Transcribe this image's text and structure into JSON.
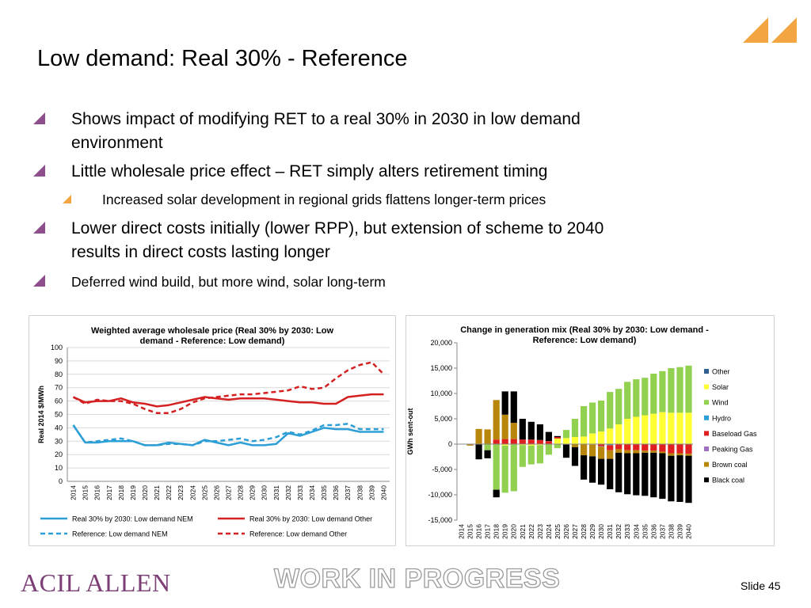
{
  "slide": {
    "title": "Low demand: Real 30% - Reference",
    "bullets": [
      {
        "level": 1,
        "text": "Shows impact of modifying RET to a real 30% in 2030 in low demand",
        "text2": "environment"
      },
      {
        "level": 1,
        "text": "Little wholesale price effect – RET simply alters retirement timing"
      },
      {
        "level": 2,
        "text": "Increased solar development in regional grids flattens longer-term prices"
      },
      {
        "level": 1,
        "text": "Lower direct costs initially (lower RPP), but extension of scheme to 2040",
        "text2": "results in direct costs lasting longer"
      },
      {
        "level": 1,
        "text": "Deferred wind build, but more wind, solar long-term",
        "small": true
      }
    ],
    "footer": {
      "logo": "ACIL ALLEN",
      "watermark": "WORK IN PROGRESS",
      "slide_number": "Slide 45"
    },
    "colors": {
      "accent_purple": "#8e4e8c",
      "accent_orange": "#f2a541",
      "brand": "#7b3f75"
    }
  },
  "chart_data": [
    {
      "type": "line",
      "title": "Weighted average wholesale price (Real 30% by 2030: Low demand - Reference: Low demand)",
      "title_lines": [
        "Weighted average wholesale price (Real 30% by 2030: Low",
        "demand - Reference: Low demand)"
      ],
      "ylabel": "Real 2014 $/MWh",
      "ylim": [
        0,
        100
      ],
      "yticks": [
        0,
        10,
        20,
        30,
        40,
        50,
        60,
        70,
        80,
        90,
        100
      ],
      "x": [
        "2014",
        "2015",
        "2016",
        "2017",
        "2018",
        "2019",
        "2020",
        "2021",
        "2022",
        "2023",
        "2024",
        "2025",
        "2026",
        "2027",
        "2028",
        "2029",
        "2030",
        "2031",
        "2032",
        "2033",
        "2034",
        "2035",
        "2036",
        "2037",
        "2038",
        "2039",
        "2040"
      ],
      "grid": true,
      "legend_position": "bottom",
      "series": [
        {
          "name": "Real 30% by 2030: Low demand NEM",
          "color": "#2e9fd6",
          "dash": false,
          "values": [
            42,
            29,
            29,
            30,
            30,
            30,
            27,
            27,
            29,
            28,
            27,
            31,
            29,
            27,
            29,
            27,
            27,
            28,
            36,
            34,
            37,
            40,
            39,
            39,
            37,
            37,
            37
          ]
        },
        {
          "name": "Real 30% by 2030: Low demand Other",
          "color": "#d42020",
          "dash": false,
          "values": [
            63,
            59,
            60,
            60,
            62,
            59,
            58,
            56,
            57,
            59,
            61,
            63,
            62,
            61,
            62,
            62,
            62,
            61,
            60,
            59,
            59,
            58,
            58,
            63,
            64,
            65,
            65
          ]
        },
        {
          "name": "Reference: Low demand NEM",
          "color": "#2e9fd6",
          "dash": true,
          "values": [
            42,
            29,
            30,
            31,
            32,
            30,
            27,
            27,
            28,
            28,
            27,
            30,
            30,
            31,
            32,
            30,
            31,
            33,
            37,
            35,
            38,
            42,
            42,
            43,
            39,
            39,
            39
          ]
        },
        {
          "name": "Reference: Low demand Other",
          "color": "#d42020",
          "dash": true,
          "values": [
            63,
            58,
            61,
            60,
            60,
            58,
            54,
            51,
            51,
            54,
            59,
            62,
            63,
            64,
            65,
            65,
            66,
            67,
            68,
            71,
            69,
            70,
            77,
            83,
            87,
            89,
            80
          ]
        }
      ]
    },
    {
      "type": "bar",
      "stacked": true,
      "title": "Change in generation mix (Real 30% by 2030: Low demand - Reference: Low demand)",
      "title_lines": [
        "Change in generation mix (Real 30% by 2030: Low demand -",
        "Reference: Low demand)"
      ],
      "ylabel": "GWh sent-out",
      "ylim": [
        -15000,
        20000
      ],
      "yticks": [
        -15000,
        -10000,
        -5000,
        0,
        5000,
        10000,
        15000,
        20000
      ],
      "ytick_labels": [
        "-15,000",
        "-10,000",
        "-5,000",
        "0",
        "5,000",
        "10,000",
        "15,000",
        "20,000"
      ],
      "categories": [
        "2014",
        "2015",
        "2016",
        "2017",
        "2018",
        "2019",
        "2020",
        "2021",
        "2022",
        "2023",
        "2024",
        "2025",
        "2026",
        "2027",
        "2028",
        "2029",
        "2030",
        "2031",
        "2032",
        "2033",
        "2034",
        "2035",
        "2036",
        "2037",
        "2038",
        "2039",
        "2040"
      ],
      "grid": false,
      "legend_position": "right",
      "series": [
        {
          "name": "Other",
          "color": "#2f5f8f",
          "values": [
            0,
            0,
            0,
            0,
            0,
            0,
            0,
            0,
            0,
            0,
            0,
            0,
            0,
            0,
            0,
            0,
            0,
            0,
            0,
            0,
            0,
            0,
            0,
            0,
            0,
            0,
            0
          ]
        },
        {
          "name": "Solar",
          "color": "#ffff33",
          "values": [
            0,
            0,
            0,
            0,
            0,
            -300,
            0,
            -200,
            -300,
            -200,
            0,
            1100,
            1200,
            1400,
            1500,
            2100,
            2500,
            3100,
            3900,
            5000,
            5400,
            5700,
            6000,
            6300,
            6200,
            6200,
            6200
          ]
        },
        {
          "name": "Wind",
          "color": "#92d050",
          "values": [
            0,
            0,
            0,
            -1200,
            -9000,
            -9300,
            -9300,
            -4300,
            -3700,
            -3600,
            -2100,
            -800,
            1600,
            3600,
            6000,
            6100,
            6100,
            7200,
            7000,
            7300,
            7400,
            7400,
            7900,
            8100,
            8800,
            9000,
            9300
          ]
        },
        {
          "name": "Hydro",
          "color": "#2e9fd6",
          "values": [
            0,
            0,
            0,
            0,
            0,
            0,
            0,
            0,
            0,
            0,
            0,
            0,
            0,
            0,
            0,
            0,
            0,
            -200,
            0,
            0,
            0,
            0,
            0,
            0,
            0,
            0,
            0
          ]
        },
        {
          "name": "Baseload Gas",
          "color": "#e02020",
          "values": [
            0,
            0,
            0,
            0,
            900,
            1000,
            1000,
            900,
            900,
            800,
            600,
            300,
            0,
            0,
            0,
            0,
            -400,
            -1000,
            -1000,
            -1200,
            -1200,
            -1300,
            -1300,
            -1500,
            -1800,
            -1800,
            -1900
          ]
        },
        {
          "name": "Peaking Gas",
          "color": "#a070c0",
          "values": [
            0,
            0,
            0,
            0,
            0,
            0,
            0,
            0,
            0,
            0,
            0,
            0,
            -100,
            0,
            0,
            -100,
            -100,
            0,
            0,
            0,
            0,
            0,
            0,
            0,
            0,
            0,
            0
          ]
        },
        {
          "name": "Brown coal",
          "color": "#b8860b",
          "values": [
            0,
            -300,
            3000,
            2900,
            7800,
            4800,
            3200,
            0,
            0,
            0,
            0,
            0,
            0,
            -600,
            -2200,
            -2300,
            -2400,
            -1700,
            -700,
            -600,
            -600,
            -400,
            -400,
            -300,
            -500,
            -400,
            -400
          ]
        },
        {
          "name": "Black coal",
          "color": "#000000",
          "values": [
            0,
            0,
            -3000,
            -1600,
            -1500,
            4600,
            6200,
            4100,
            3500,
            3100,
            1800,
            200,
            -2600,
            -3700,
            -4800,
            -5200,
            -5100,
            -6000,
            -7800,
            -8100,
            -8300,
            -8500,
            -8800,
            -9000,
            -9000,
            -9200,
            -9300
          ]
        }
      ]
    }
  ]
}
